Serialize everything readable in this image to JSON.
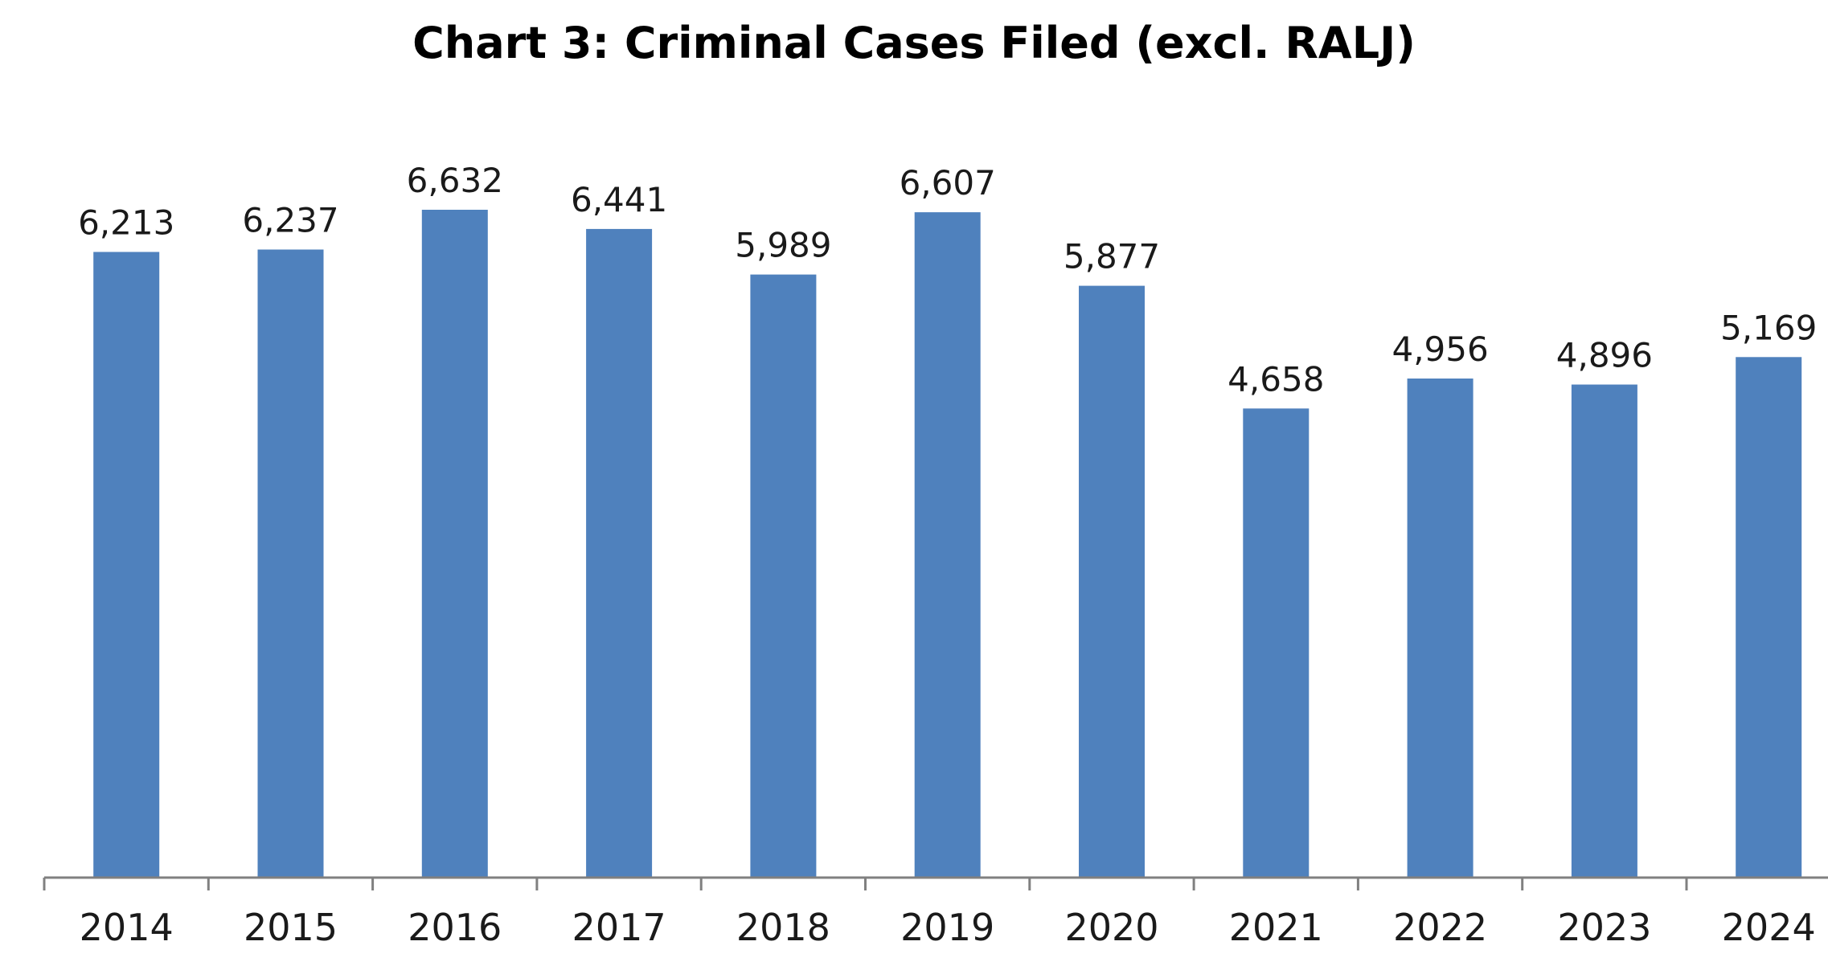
{
  "chart_data": {
    "type": "bar",
    "title": "Chart 3:  Criminal Cases Filed (excl. RALJ)",
    "xlabel": "",
    "ylabel": "",
    "categories": [
      "2014",
      "2015",
      "2016",
      "2017",
      "2018",
      "2019",
      "2020",
      "2021",
      "2022",
      "2023",
      "2024"
    ],
    "values": [
      6213,
      6237,
      6632,
      6441,
      5989,
      6607,
      5877,
      4658,
      4956,
      4896,
      5169
    ],
    "data_labels": [
      "6,213",
      "6,237",
      "6,632",
      "6,441",
      "5,989",
      "6,607",
      "5,877",
      "4,658",
      "4,956",
      "4,896",
      "5,169"
    ],
    "ylim": [
      0,
      6632
    ],
    "grid": false,
    "legend": "none",
    "colors": {
      "bar": "#4f81bd",
      "axis": "#808080"
    }
  }
}
